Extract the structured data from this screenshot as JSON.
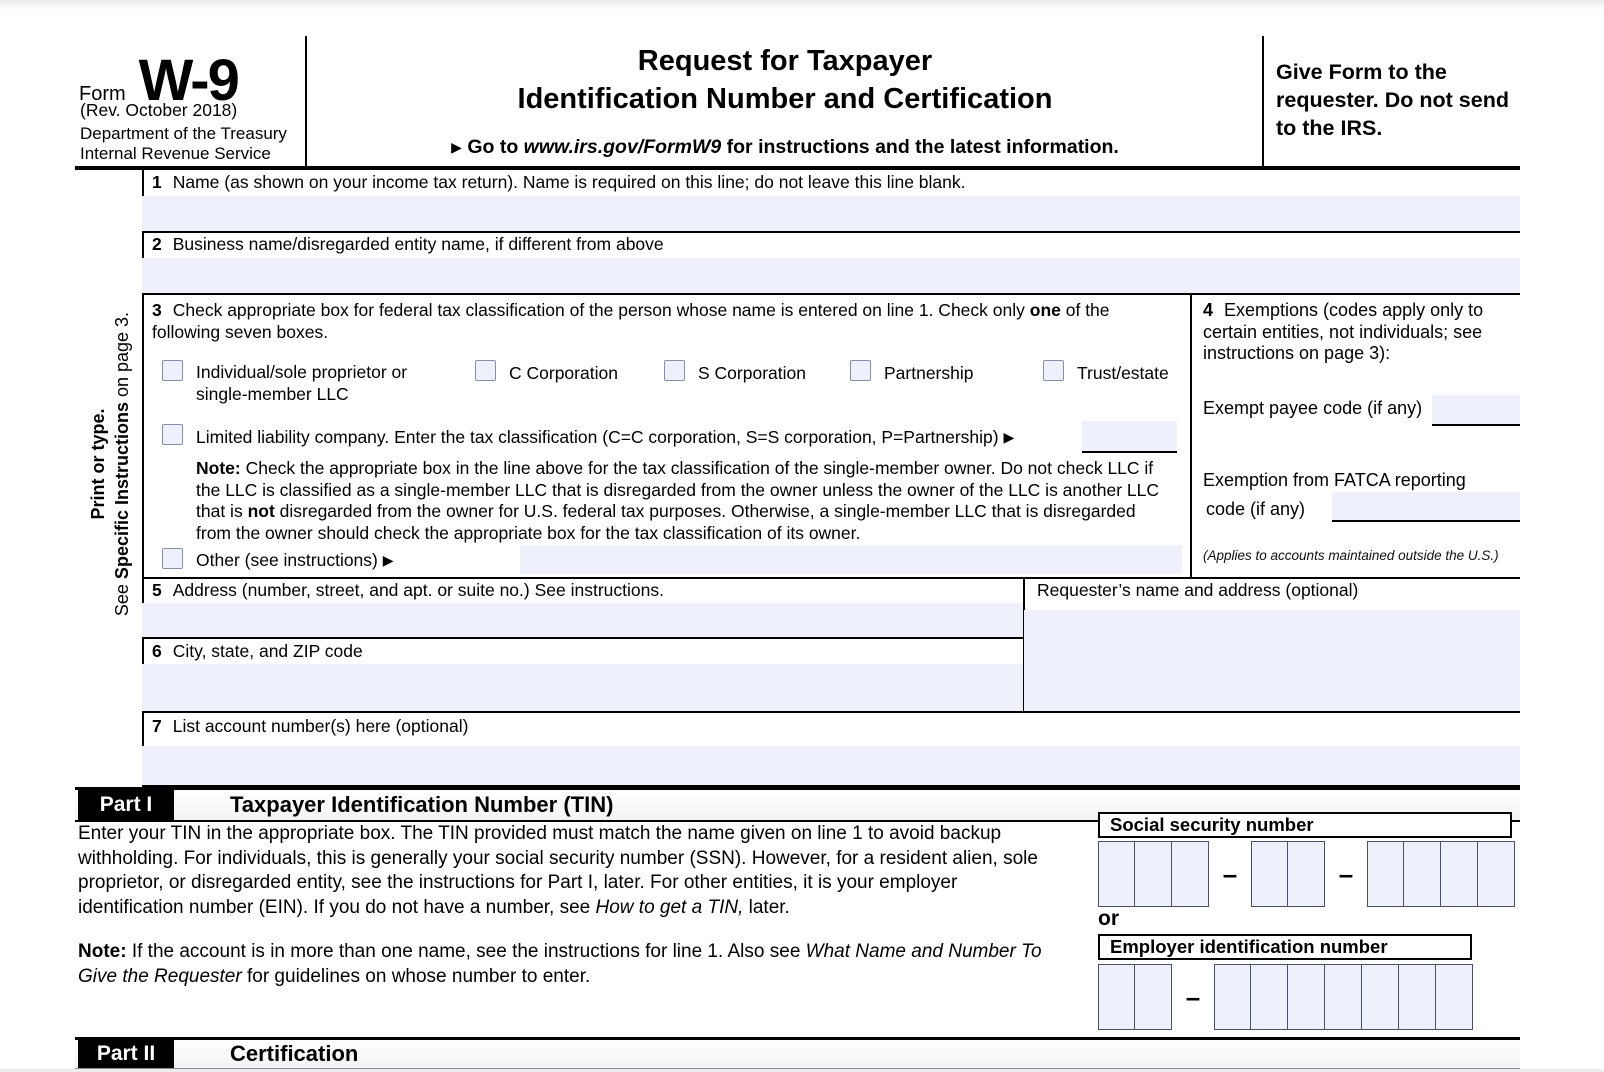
{
  "colors": {
    "field_fill": "#eef0fb",
    "ink": "#000000",
    "checkbox_border": "#8590a8"
  },
  "header": {
    "form_word": "Form",
    "form_number": "W-9",
    "rev": "(Rev. October 2018)",
    "dept": "Department of the Treasury",
    "irs": "Internal Revenue Service",
    "title1": "Request for Taxpayer",
    "title2": "Identification Number and Certification",
    "goto_arrow": "▶",
    "goto_pre": "Go to ",
    "goto_url": "www.irs.gov/FormW9",
    "goto_post": " for instructions and the latest information.",
    "give_form": "Give Form to the requester. Do not send to the IRS."
  },
  "sidebar": {
    "bold_line": "Print or type.",
    "see": "See ",
    "specific": "Specific Instructions",
    "rest": " on page 3."
  },
  "line1": {
    "num": "1",
    "label": "Name (as shown on your income tax return). Name is required on this line; do not leave this line blank.",
    "value": ""
  },
  "line2": {
    "num": "2",
    "label": "Business name/disregarded entity name, if different from above",
    "value": ""
  },
  "line3": {
    "num": "3",
    "label_pre": "Check appropriate box for federal tax classification of the person whose name is entered on line 1. Check only ",
    "label_bold": "one",
    "label_post": " of the following seven boxes.",
    "options": [
      {
        "label": "Individual/sole proprietor or single-member LLC"
      },
      {
        "label": "C Corporation"
      },
      {
        "label": "S Corporation"
      },
      {
        "label": "Partnership"
      },
      {
        "label": "Trust/estate"
      }
    ],
    "llc_label": "Limited liability company. Enter the tax classification (C=C corporation, S=S corporation, P=Partnership) ",
    "llc_arrow": "▶",
    "llc_value": "",
    "note_bold": "Note:",
    "note_r1": " Check the appropriate box in the line above for the tax classification of the single-member owner.  Do not check LLC if the LLC is classified as a single-member LLC that is disregarded from the owner unless the owner of the LLC is another LLC that is ",
    "note_b2": "not",
    "note_r2": " disregarded from the owner for U.S. federal tax purposes. Otherwise, a single-member LLC that is disregarded from the owner should check the appropriate box for the tax classification of its owner.",
    "other_label": "Other (see instructions) ",
    "other_arrow": "▶",
    "other_value": ""
  },
  "line4": {
    "num": "4",
    "label": "Exemptions (codes apply only to certain entities, not individuals; see instructions on page 3):",
    "exempt_label": "Exempt payee code (if any)",
    "exempt_value": "",
    "fatca_label1": "Exemption from FATCA reporting",
    "fatca_label2": "code (if any)",
    "fatca_value": "",
    "applies": "(Applies to accounts maintained outside the U.S.)"
  },
  "line5": {
    "num": "5",
    "label": "Address (number, street, and apt. or suite no.) See instructions.",
    "value": ""
  },
  "requester": {
    "label": "Requester’s name and address (optional)",
    "value": ""
  },
  "line6": {
    "num": "6",
    "label": "City, state, and ZIP code",
    "value": ""
  },
  "line7": {
    "num": "7",
    "label": "List account number(s) here (optional)",
    "value": ""
  },
  "part1": {
    "part_label": "Part I",
    "title": "Taxpayer Identification Number (TIN)",
    "p1_r1": "Enter your TIN in the appropriate box. The TIN provided must match the name given on line 1 to avoid backup withholding. For individuals, this is generally your social security number (SSN). However, for a resident alien, sole proprietor, or disregarded entity, see the instructions for Part I, later. For other entities, it is your employer identification number (EIN). If you do not have a number, see ",
    "p1_it": "How to get a TIN,",
    "p1_r2": " later.",
    "note_bold": "Note:",
    "note_r1": " If the account is in more than one name, see the instructions for line 1. Also see ",
    "note_it": "What Name and Number To Give the Requester",
    "note_r2": " for guidelines on whose number to enter.",
    "ssn_label": "Social security number",
    "or_label": "or",
    "ein_label": "Employer identification number",
    "ssn_groups": [
      3,
      2,
      4
    ],
    "ein_groups": [
      2,
      7
    ],
    "dash": "–"
  },
  "part2": {
    "part_label": "Part II",
    "title": "Certification"
  }
}
